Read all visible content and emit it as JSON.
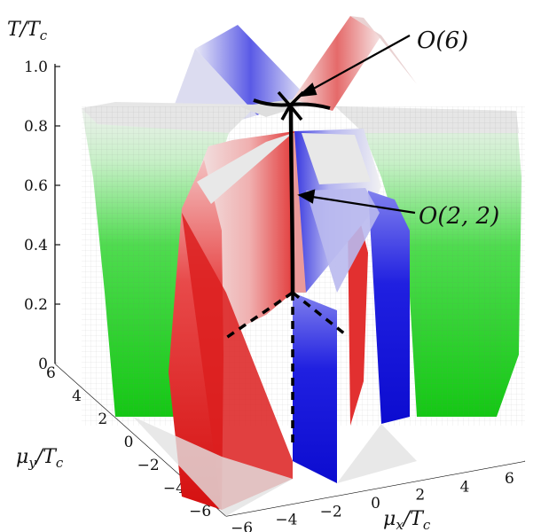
{
  "chart_data": {
    "type": "surface3d",
    "title": "",
    "zlabel": "T/T",
    "zlabel_sub": "c",
    "xlabel": "μ",
    "xlabel_sub": "x",
    "xlabel_den": "/T",
    "xlabel_den_sub": "c",
    "ylabel": "μ",
    "ylabel_sub": "y",
    "ylabel_den": "/T",
    "ylabel_den_sub": "c",
    "z_ticks": [
      "0",
      "0.2",
      "0.4",
      "0.6",
      "0.8",
      "1.0"
    ],
    "z_range": [
      0,
      1.0
    ],
    "x_ticks": [
      "−6",
      "−4",
      "−2",
      "0",
      "2",
      "4",
      "6"
    ],
    "x_range": [
      -6,
      6
    ],
    "y_ticks": [
      "6",
      "4",
      "2",
      "0",
      "−2",
      "−4",
      "−6"
    ],
    "y_range": [
      -6,
      6
    ],
    "annotations": [
      {
        "text": "O(6)",
        "point": "peak at T/Tc = 1.0 where three critical lines meet"
      },
      {
        "text": "O(2, 2)",
        "point": "critical line along μx = μy axis intersection"
      }
    ],
    "colors": {
      "green_branch": "#22cc22",
      "red_branch": "#e02020",
      "blue_branch": "#1a1ae6",
      "ridge_top": "#e6e6e6"
    }
  }
}
